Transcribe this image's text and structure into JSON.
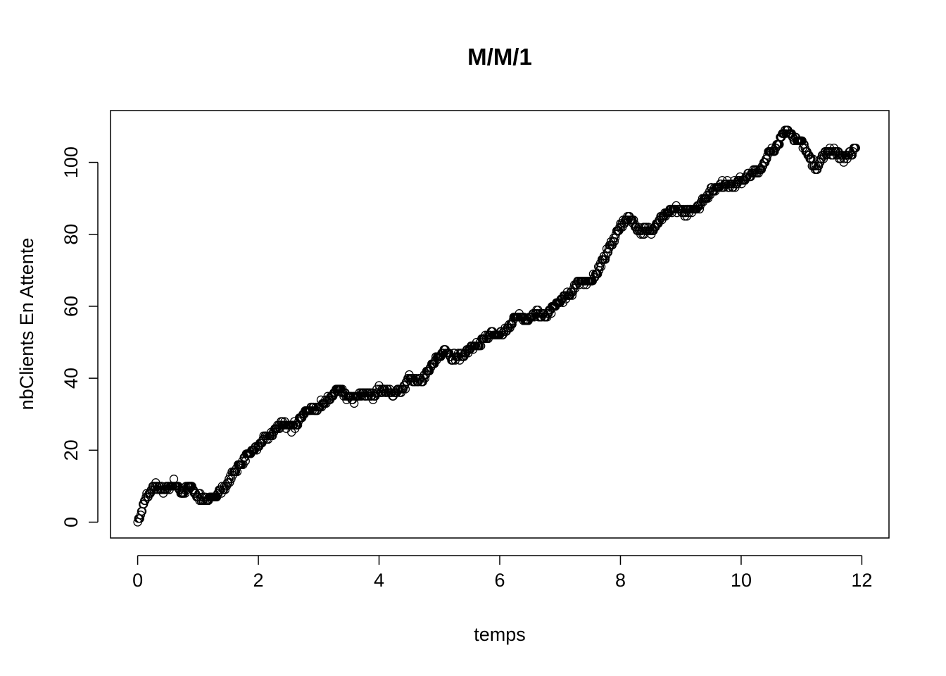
{
  "chart_data": {
    "type": "scatter",
    "title": "M/M/1",
    "xlabel": "temps",
    "ylabel": "nbClients En Attente",
    "xlim": [
      -0.45,
      12.45
    ],
    "ylim": [
      -4.4,
      114.4
    ],
    "x_ticks": [
      0,
      2,
      4,
      6,
      8,
      10,
      12
    ],
    "y_ticks": [
      0,
      20,
      40,
      60,
      80,
      100
    ],
    "x_tick_labels": [
      "0",
      "2",
      "4",
      "6",
      "8",
      "10",
      "12"
    ],
    "y_tick_labels": [
      "0",
      "20",
      "40",
      "60",
      "80",
      "100"
    ],
    "marker": "open-circle",
    "color": "#000000",
    "grid": false,
    "legend": "none",
    "anchor_points": [
      [
        0.0,
        0
      ],
      [
        0.05,
        2
      ],
      [
        0.1,
        5
      ],
      [
        0.15,
        7
      ],
      [
        0.2,
        8
      ],
      [
        0.3,
        10
      ],
      [
        0.35,
        9
      ],
      [
        0.45,
        9
      ],
      [
        0.55,
        10
      ],
      [
        0.6,
        11
      ],
      [
        0.7,
        9
      ],
      [
        0.75,
        8
      ],
      [
        0.85,
        10
      ],
      [
        0.95,
        8
      ],
      [
        1.0,
        7
      ],
      [
        1.05,
        7
      ],
      [
        1.2,
        6
      ],
      [
        1.3,
        8
      ],
      [
        1.4,
        9
      ],
      [
        1.5,
        11
      ],
      [
        1.6,
        14
      ],
      [
        1.75,
        17
      ],
      [
        1.85,
        19
      ],
      [
        2.0,
        21
      ],
      [
        2.1,
        23
      ],
      [
        2.2,
        24
      ],
      [
        2.4,
        28
      ],
      [
        2.55,
        26
      ],
      [
        2.7,
        29
      ],
      [
        2.8,
        31
      ],
      [
        3.0,
        32
      ],
      [
        3.1,
        34
      ],
      [
        3.2,
        34
      ],
      [
        3.3,
        37
      ],
      [
        3.45,
        35
      ],
      [
        3.6,
        34
      ],
      [
        3.75,
        36
      ],
      [
        3.9,
        35
      ],
      [
        4.0,
        37
      ],
      [
        4.2,
        36
      ],
      [
        4.4,
        37
      ],
      [
        4.5,
        40
      ],
      [
        4.7,
        39
      ],
      [
        4.8,
        42
      ],
      [
        5.0,
        46
      ],
      [
        5.1,
        48
      ],
      [
        5.2,
        46
      ],
      [
        5.35,
        46
      ],
      [
        5.5,
        48
      ],
      [
        5.65,
        49
      ],
      [
        5.8,
        52
      ],
      [
        5.95,
        52
      ],
      [
        6.1,
        53
      ],
      [
        6.3,
        58
      ],
      [
        6.45,
        56
      ],
      [
        6.6,
        58
      ],
      [
        6.75,
        57
      ],
      [
        6.9,
        60
      ],
      [
        7.05,
        62
      ],
      [
        7.2,
        64
      ],
      [
        7.3,
        67
      ],
      [
        7.45,
        66
      ],
      [
        7.6,
        69
      ],
      [
        7.75,
        74
      ],
      [
        7.9,
        79
      ],
      [
        8.0,
        82
      ],
      [
        8.15,
        85
      ],
      [
        8.3,
        81
      ],
      [
        8.5,
        81
      ],
      [
        8.7,
        85
      ],
      [
        8.9,
        87
      ],
      [
        9.1,
        86
      ],
      [
        9.3,
        88
      ],
      [
        9.5,
        92
      ],
      [
        9.7,
        94
      ],
      [
        9.9,
        94
      ],
      [
        10.1,
        96
      ],
      [
        10.3,
        98
      ],
      [
        10.45,
        102
      ],
      [
        10.6,
        105
      ],
      [
        10.75,
        109
      ],
      [
        10.85,
        107
      ],
      [
        11.0,
        106
      ],
      [
        11.15,
        101
      ],
      [
        11.25,
        98
      ],
      [
        11.4,
        103
      ],
      [
        11.55,
        103
      ],
      [
        11.7,
        101
      ],
      [
        11.9,
        104
      ]
    ]
  }
}
